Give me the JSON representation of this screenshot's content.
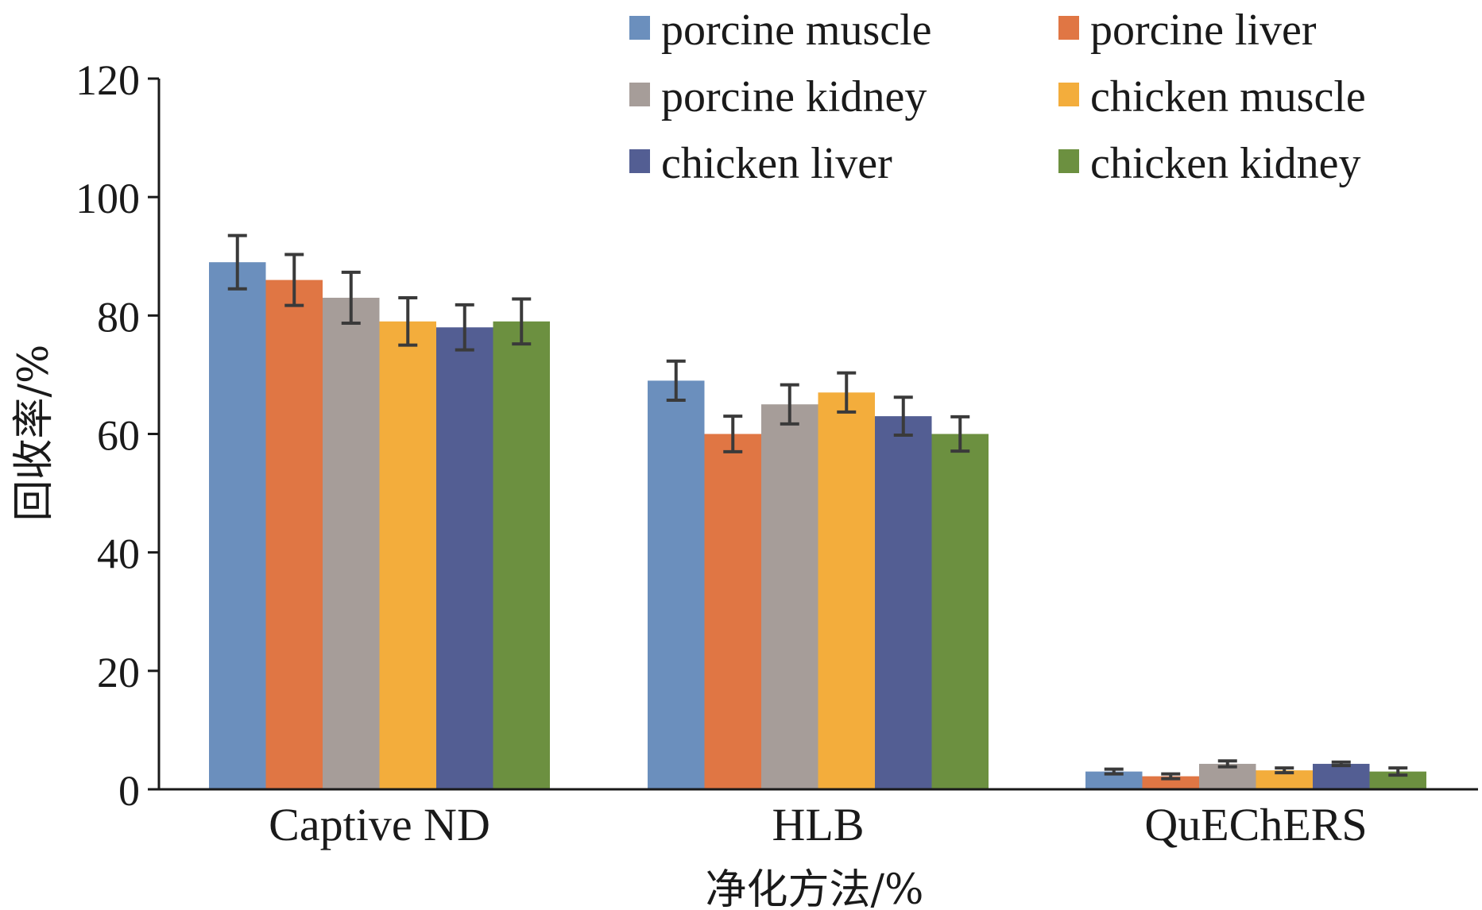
{
  "chart_data": {
    "type": "bar",
    "title": "",
    "xlabel": "净化方法/%",
    "ylabel": "回收率/%",
    "ylim": [
      0,
      120
    ],
    "yticks": [
      0,
      20,
      40,
      60,
      80,
      100,
      120
    ],
    "grid": false,
    "legend": "top-right",
    "categories": [
      "Captive ND",
      "HLB",
      "QuEChERS"
    ],
    "series": [
      {
        "name": "porcine muscle",
        "color": "#6b8fbd",
        "values": [
          89,
          69,
          3
        ],
        "errors": [
          4.5,
          3.3,
          0.4
        ]
      },
      {
        "name": "porcine liver",
        "color": "#e07644",
        "values": [
          86,
          60,
          2.2
        ],
        "errors": [
          4.3,
          3.0,
          0.4
        ]
      },
      {
        "name": "porcine kidney",
        "color": "#a69d99",
        "values": [
          83,
          65,
          4.3
        ],
        "errors": [
          4.3,
          3.3,
          0.5
        ]
      },
      {
        "name": "chicken muscle",
        "color": "#f3ad3c",
        "values": [
          79,
          67,
          3.2
        ],
        "errors": [
          4.0,
          3.3,
          0.4
        ]
      },
      {
        "name": "chicken liver",
        "color": "#535e93",
        "values": [
          78,
          63,
          4.3
        ],
        "errors": [
          3.8,
          3.2,
          0.3
        ]
      },
      {
        "name": "chicken kidney",
        "color": "#6c9040",
        "values": [
          79,
          60,
          3
        ],
        "errors": [
          3.8,
          2.9,
          0.6
        ]
      }
    ]
  }
}
